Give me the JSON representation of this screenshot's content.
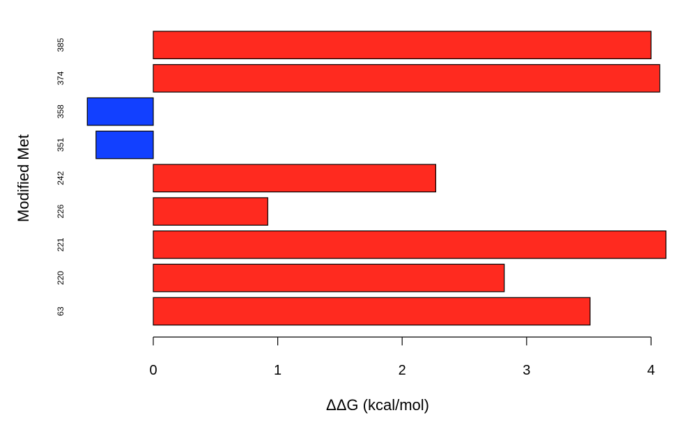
{
  "chart_data": {
    "type": "bar",
    "orientation": "horizontal",
    "title": "",
    "xlabel": "ΔΔG (kcal/mol)",
    "ylabel": "Modified Met",
    "categories": [
      "63",
      "220",
      "221",
      "226",
      "242",
      "351",
      "358",
      "374",
      "385"
    ],
    "values": [
      3.51,
      2.82,
      4.12,
      0.92,
      2.27,
      -0.46,
      -0.53,
      4.07,
      4.0
    ],
    "xlim": [
      -0.55,
      4.15
    ],
    "xticks": [
      0,
      1,
      2,
      3,
      4
    ],
    "grid": false,
    "legend": "none",
    "colors": {
      "positive": "#ff2a1f",
      "negative": "#1240ff",
      "border": "#000000"
    }
  }
}
